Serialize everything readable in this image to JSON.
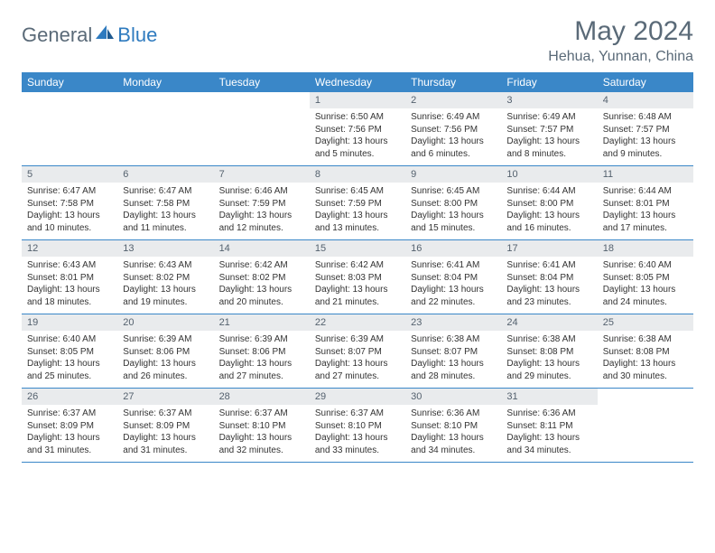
{
  "logo": {
    "general": "General",
    "blue": "Blue"
  },
  "title": "May 2024",
  "location": "Hehua, Yunnan, China",
  "colors": {
    "header_bg": "#3a87c8",
    "header_text": "#ffffff",
    "daynum_bg": "#e9ebed",
    "daynum_text": "#54616e",
    "body_text": "#333333",
    "title_text": "#5a6a78",
    "row_border": "#3a87c8",
    "logo_accent": "#2f7bbf"
  },
  "dow": [
    "Sunday",
    "Monday",
    "Tuesday",
    "Wednesday",
    "Thursday",
    "Friday",
    "Saturday"
  ],
  "weeks": [
    [
      null,
      null,
      null,
      {
        "n": "1",
        "sunrise": "6:50 AM",
        "sunset": "7:56 PM",
        "daylight": "13 hours and 5 minutes."
      },
      {
        "n": "2",
        "sunrise": "6:49 AM",
        "sunset": "7:56 PM",
        "daylight": "13 hours and 6 minutes."
      },
      {
        "n": "3",
        "sunrise": "6:49 AM",
        "sunset": "7:57 PM",
        "daylight": "13 hours and 8 minutes."
      },
      {
        "n": "4",
        "sunrise": "6:48 AM",
        "sunset": "7:57 PM",
        "daylight": "13 hours and 9 minutes."
      }
    ],
    [
      {
        "n": "5",
        "sunrise": "6:47 AM",
        "sunset": "7:58 PM",
        "daylight": "13 hours and 10 minutes."
      },
      {
        "n": "6",
        "sunrise": "6:47 AM",
        "sunset": "7:58 PM",
        "daylight": "13 hours and 11 minutes."
      },
      {
        "n": "7",
        "sunrise": "6:46 AM",
        "sunset": "7:59 PM",
        "daylight": "13 hours and 12 minutes."
      },
      {
        "n": "8",
        "sunrise": "6:45 AM",
        "sunset": "7:59 PM",
        "daylight": "13 hours and 13 minutes."
      },
      {
        "n": "9",
        "sunrise": "6:45 AM",
        "sunset": "8:00 PM",
        "daylight": "13 hours and 15 minutes."
      },
      {
        "n": "10",
        "sunrise": "6:44 AM",
        "sunset": "8:00 PM",
        "daylight": "13 hours and 16 minutes."
      },
      {
        "n": "11",
        "sunrise": "6:44 AM",
        "sunset": "8:01 PM",
        "daylight": "13 hours and 17 minutes."
      }
    ],
    [
      {
        "n": "12",
        "sunrise": "6:43 AM",
        "sunset": "8:01 PM",
        "daylight": "13 hours and 18 minutes."
      },
      {
        "n": "13",
        "sunrise": "6:43 AM",
        "sunset": "8:02 PM",
        "daylight": "13 hours and 19 minutes."
      },
      {
        "n": "14",
        "sunrise": "6:42 AM",
        "sunset": "8:02 PM",
        "daylight": "13 hours and 20 minutes."
      },
      {
        "n": "15",
        "sunrise": "6:42 AM",
        "sunset": "8:03 PM",
        "daylight": "13 hours and 21 minutes."
      },
      {
        "n": "16",
        "sunrise": "6:41 AM",
        "sunset": "8:04 PM",
        "daylight": "13 hours and 22 minutes."
      },
      {
        "n": "17",
        "sunrise": "6:41 AM",
        "sunset": "8:04 PM",
        "daylight": "13 hours and 23 minutes."
      },
      {
        "n": "18",
        "sunrise": "6:40 AM",
        "sunset": "8:05 PM",
        "daylight": "13 hours and 24 minutes."
      }
    ],
    [
      {
        "n": "19",
        "sunrise": "6:40 AM",
        "sunset": "8:05 PM",
        "daylight": "13 hours and 25 minutes."
      },
      {
        "n": "20",
        "sunrise": "6:39 AM",
        "sunset": "8:06 PM",
        "daylight": "13 hours and 26 minutes."
      },
      {
        "n": "21",
        "sunrise": "6:39 AM",
        "sunset": "8:06 PM",
        "daylight": "13 hours and 27 minutes."
      },
      {
        "n": "22",
        "sunrise": "6:39 AM",
        "sunset": "8:07 PM",
        "daylight": "13 hours and 27 minutes."
      },
      {
        "n": "23",
        "sunrise": "6:38 AM",
        "sunset": "8:07 PM",
        "daylight": "13 hours and 28 minutes."
      },
      {
        "n": "24",
        "sunrise": "6:38 AM",
        "sunset": "8:08 PM",
        "daylight": "13 hours and 29 minutes."
      },
      {
        "n": "25",
        "sunrise": "6:38 AM",
        "sunset": "8:08 PM",
        "daylight": "13 hours and 30 minutes."
      }
    ],
    [
      {
        "n": "26",
        "sunrise": "6:37 AM",
        "sunset": "8:09 PM",
        "daylight": "13 hours and 31 minutes."
      },
      {
        "n": "27",
        "sunrise": "6:37 AM",
        "sunset": "8:09 PM",
        "daylight": "13 hours and 31 minutes."
      },
      {
        "n": "28",
        "sunrise": "6:37 AM",
        "sunset": "8:10 PM",
        "daylight": "13 hours and 32 minutes."
      },
      {
        "n": "29",
        "sunrise": "6:37 AM",
        "sunset": "8:10 PM",
        "daylight": "13 hours and 33 minutes."
      },
      {
        "n": "30",
        "sunrise": "6:36 AM",
        "sunset": "8:10 PM",
        "daylight": "13 hours and 34 minutes."
      },
      {
        "n": "31",
        "sunrise": "6:36 AM",
        "sunset": "8:11 PM",
        "daylight": "13 hours and 34 minutes."
      },
      null
    ]
  ],
  "labels": {
    "sunrise": "Sunrise:",
    "sunset": "Sunset:",
    "daylight": "Daylight:"
  }
}
